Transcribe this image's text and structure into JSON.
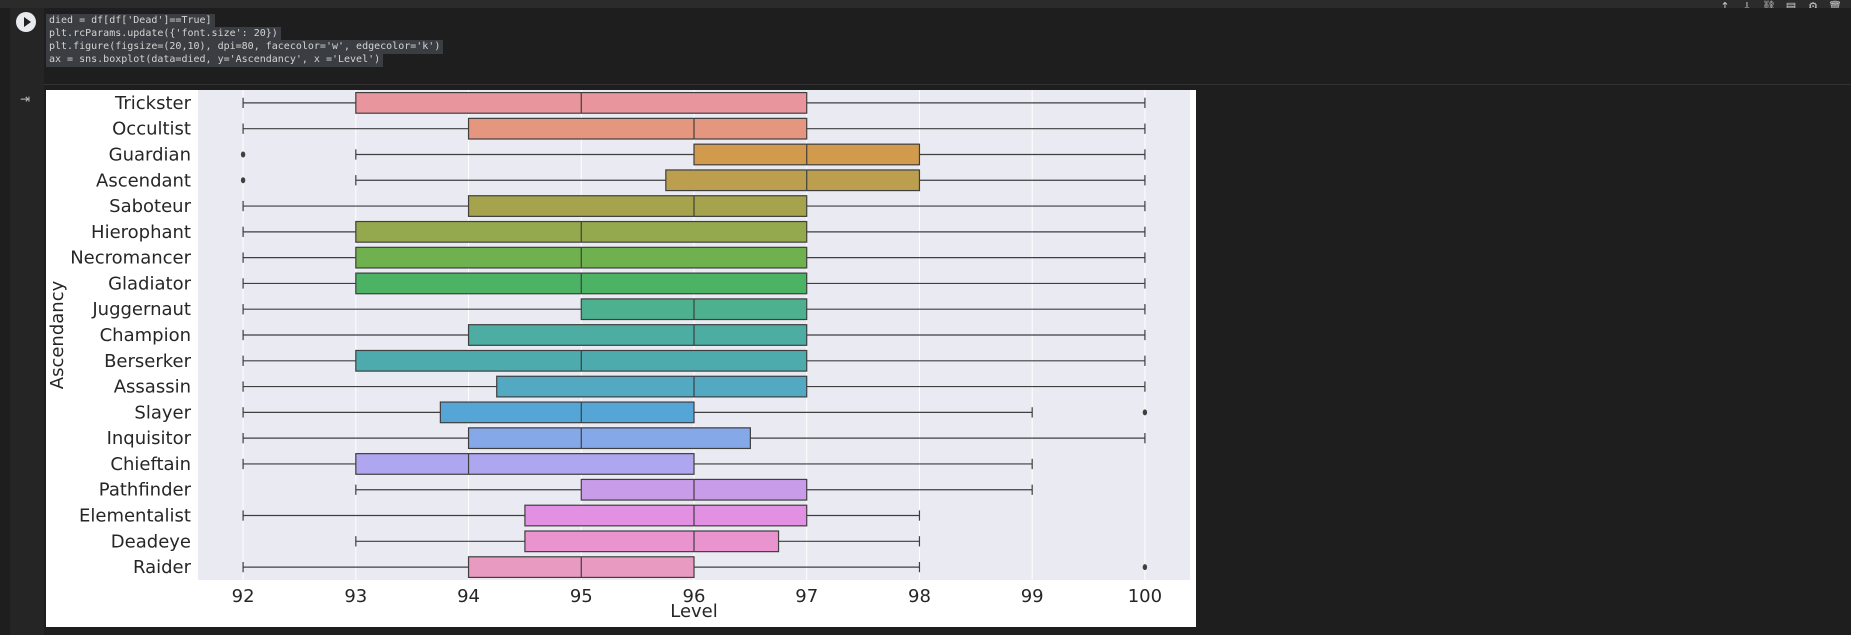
{
  "toolbar": {
    "icons": [
      "arrow-up-icon",
      "arrow-down-icon",
      "link-icon",
      "comment-icon",
      "gear-icon",
      "trash-icon"
    ],
    "glyphs": [
      "↑",
      "↓",
      "⛓",
      "▤",
      "⚙",
      "🗑"
    ]
  },
  "code": {
    "lines": [
      "died = df[df['Dead']==True]",
      "plt.rcParams.update({'font.size': 20})",
      "plt.figure(figsize=(20,10), dpi=80, facecolor='w', edgecolor='k')",
      "ax = sns.boxplot(data=died, y='Ascendancy', x ='Level')"
    ]
  },
  "chart_data": {
    "type": "boxplot",
    "orientation": "horizontal",
    "xlabel": "Level",
    "ylabel": "Ascendancy",
    "xlim": [
      91.6,
      100.4
    ],
    "xticks": [
      92,
      93,
      94,
      95,
      96,
      97,
      98,
      99,
      100
    ],
    "grid": true,
    "categories": [
      "Trickster",
      "Occultist",
      "Guardian",
      "Ascendant",
      "Saboteur",
      "Hierophant",
      "Necromancer",
      "Gladiator",
      "Juggernaut",
      "Champion",
      "Berserker",
      "Assassin",
      "Slayer",
      "Inquisitor",
      "Chieftain",
      "Pathfinder",
      "Elementalist",
      "Deadeye",
      "Raider"
    ],
    "boxes": [
      {
        "whislo": 92,
        "q1": 93,
        "med": 95,
        "q3": 97,
        "whishi": 100,
        "fliers": [],
        "color": "#e8959d"
      },
      {
        "whislo": 92,
        "q1": 94,
        "med": 96,
        "q3": 97,
        "whishi": 100,
        "fliers": [],
        "color": "#e5967f"
      },
      {
        "whislo": 93,
        "q1": 96,
        "med": 97,
        "q3": 98,
        "whishi": 100,
        "fliers": [
          92
        ],
        "color": "#d29a4d"
      },
      {
        "whislo": 93,
        "q1": 95.75,
        "med": 97,
        "q3": 98,
        "whishi": 100,
        "fliers": [
          92
        ],
        "color": "#bb9e4e"
      },
      {
        "whislo": 92,
        "q1": 94,
        "med": 96,
        "q3": 97,
        "whishi": 100,
        "fliers": [],
        "color": "#a6a34d"
      },
      {
        "whislo": 92,
        "q1": 93,
        "med": 95,
        "q3": 97,
        "whishi": 100,
        "fliers": [],
        "color": "#94a84d"
      },
      {
        "whislo": 92,
        "q1": 93,
        "med": 95,
        "q3": 97,
        "whishi": 100,
        "fliers": [],
        "color": "#6fb14e"
      },
      {
        "whislo": 92,
        "q1": 93,
        "med": 95,
        "q3": 97,
        "whishi": 100,
        "fliers": [],
        "color": "#4cb365"
      },
      {
        "whislo": 92,
        "q1": 95,
        "med": 96,
        "q3": 97,
        "whishi": 100,
        "fliers": [],
        "color": "#4db08f"
      },
      {
        "whislo": 92,
        "q1": 94,
        "med": 96,
        "q3": 97,
        "whishi": 100,
        "fliers": [],
        "color": "#4dada2"
      },
      {
        "whislo": 92,
        "q1": 93,
        "med": 95,
        "q3": 97,
        "whishi": 100,
        "fliers": [],
        "color": "#4eabad"
      },
      {
        "whislo": 92,
        "q1": 94.25,
        "med": 96,
        "q3": 97,
        "whishi": 100,
        "fliers": [],
        "color": "#52a9c1"
      },
      {
        "whislo": 92,
        "q1": 93.75,
        "med": 95,
        "q3": 96,
        "whishi": 99,
        "fliers": [
          100
        ],
        "color": "#55a6d6"
      },
      {
        "whislo": 92,
        "q1": 94,
        "med": 95,
        "q3": 96.5,
        "whishi": 100,
        "fliers": [],
        "color": "#84a8e8"
      },
      {
        "whislo": 92,
        "q1": 93,
        "med": 94,
        "q3": 96,
        "whishi": 99,
        "fliers": [],
        "color": "#aea6ee"
      },
      {
        "whislo": 93,
        "q1": 95,
        "med": 96,
        "q3": 97,
        "whishi": 99,
        "fliers": [],
        "color": "#c89ce8"
      },
      {
        "whislo": 92,
        "q1": 94.5,
        "med": 96,
        "q3": 97,
        "whishi": 98,
        "fliers": [],
        "color": "#e290e2"
      },
      {
        "whislo": 93,
        "q1": 94.5,
        "med": 96,
        "q3": 96.75,
        "whishi": 98,
        "fliers": [],
        "color": "#e994cf"
      },
      {
        "whislo": 92,
        "q1": 94,
        "med": 95,
        "q3": 96,
        "whishi": 98,
        "fliers": [
          100
        ],
        "color": "#e89ac0"
      }
    ]
  }
}
